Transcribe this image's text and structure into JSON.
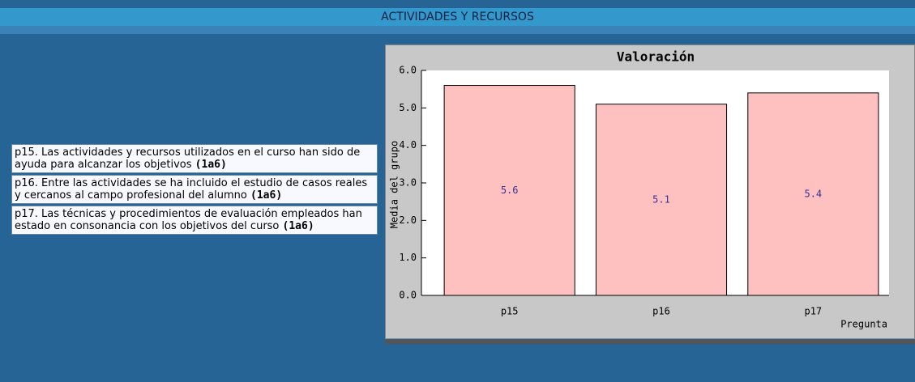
{
  "header": {
    "title": "ACTIVIDADES Y RECURSOS"
  },
  "items": [
    {
      "text": "p15. Las actividades y recursos utilizados en el curso han sido de ayuda para alcanzar los objetivos",
      "code": "(1a6)"
    },
    {
      "text": "p16. Entre las actividades se ha incluido el estudio de casos reales y cercanos al campo profesional del alumno",
      "code": "(1a6)"
    },
    {
      "text": "p17. Las técnicas y procedimientos de evaluación empleados han estado en consonancia con los objetivos del curso",
      "code": "(1a6)"
    }
  ],
  "chart_data": {
    "type": "bar",
    "title": "Valoración",
    "ylabel": "Media del grupo",
    "xlabel": "Pregunta",
    "categories": [
      "p15",
      "p16",
      "p17"
    ],
    "values": [
      5.6,
      5.1,
      5.4
    ],
    "color": "#ffc0c0",
    "ylim": [
      0,
      6
    ],
    "yticks": [
      {
        "value": 0,
        "label": "0.0"
      },
      {
        "value": 1,
        "label": "1.0"
      },
      {
        "value": 2,
        "label": "2.0"
      },
      {
        "value": 3,
        "label": "3.0"
      },
      {
        "value": 4,
        "label": "4.0"
      },
      {
        "value": 5,
        "label": "5.0"
      },
      {
        "value": 6,
        "label": "6.0"
      }
    ],
    "grid": false
  }
}
